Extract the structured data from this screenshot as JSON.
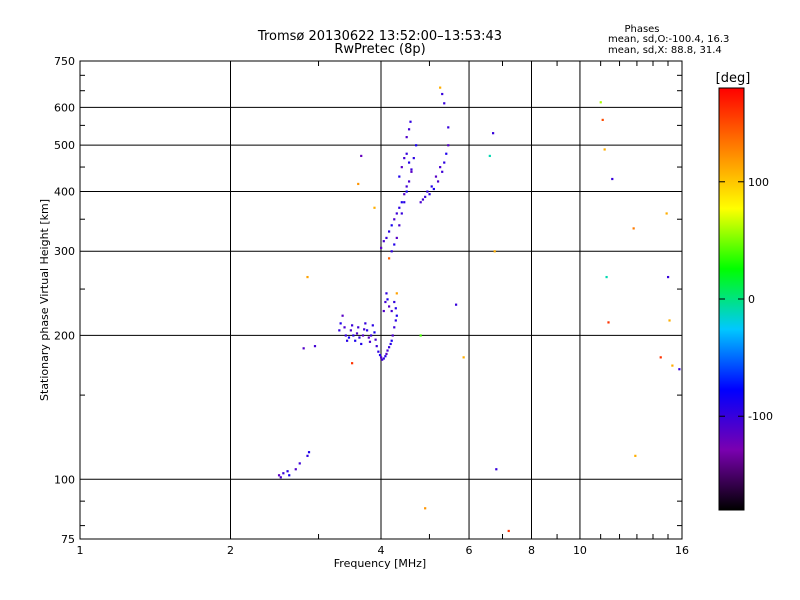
{
  "chart_data": {
    "type": "scatter",
    "title": "Tromsø 20130622 13:52:00–13:53:43",
    "subtitle": "RwPretec (8p)",
    "xlabel": "Frequency [MHz]",
    "ylabel": "Stationary phase Virtual Height [km]",
    "x_scale": "log",
    "y_scale": "log",
    "xlim": [
      1,
      16
    ],
    "ylim": [
      75,
      750
    ],
    "x_ticks": [
      1,
      2,
      4,
      6,
      8,
      10,
      16
    ],
    "x_tick_labels": [
      "1",
      "2",
      "4",
      "6",
      "8",
      "10",
      "16"
    ],
    "y_ticks": [
      75,
      100,
      200,
      300,
      400,
      500,
      600,
      750
    ],
    "y_tick_labels": [
      "75",
      "100",
      "200",
      "300",
      "400",
      "500",
      "600",
      "750"
    ],
    "grid": true,
    "legend": {
      "position": "top-right",
      "title": "Phases",
      "lines": [
        "mean, sd,O:-100.4, 16.3",
        "mean, sd,X:  88.8, 31.4"
      ]
    },
    "colorbar": {
      "label": "[deg]",
      "range": [
        -180,
        180
      ],
      "ticks": [
        100,
        0,
        -100
      ],
      "tick_labels": [
        "100",
        "0",
        "-100"
      ],
      "colormap": [
        "#000000",
        "#7a00b0",
        "#0000ff",
        "#00c8ff",
        "#00ff00",
        "#ffff00",
        "#ff8000",
        "#ff0000"
      ]
    },
    "series": [
      {
        "kind": "o-trace-lower",
        "points": [
          [
            2.5,
            102
          ],
          [
            2.52,
            101
          ],
          [
            2.55,
            103
          ],
          [
            2.6,
            104
          ],
          [
            2.62,
            102
          ],
          [
            2.7,
            105
          ],
          [
            2.75,
            108
          ],
          [
            2.85,
            112
          ],
          [
            2.87,
            114
          ],
          [
            2.8,
            188
          ],
          [
            2.95,
            190
          ],
          [
            3.3,
            205
          ],
          [
            3.32,
            212
          ],
          [
            3.35,
            220
          ],
          [
            3.38,
            208
          ],
          [
            3.4,
            200
          ],
          [
            3.42,
            195
          ],
          [
            3.45,
            198
          ],
          [
            3.48,
            205
          ],
          [
            3.5,
            210
          ],
          [
            3.52,
            200
          ],
          [
            3.55,
            195
          ],
          [
            3.58,
            202
          ],
          [
            3.6,
            208
          ],
          [
            3.62,
            198
          ],
          [
            3.65,
            192
          ],
          [
            3.68,
            200
          ],
          [
            3.7,
            206
          ],
          [
            3.72,
            212
          ],
          [
            3.75,
            205
          ],
          [
            3.78,
            198
          ],
          [
            3.8,
            194
          ],
          [
            3.82,
            200
          ],
          [
            3.85,
            210
          ],
          [
            3.88,
            203
          ],
          [
            3.9,
            196
          ],
          [
            3.92,
            190
          ],
          [
            3.95,
            185
          ],
          [
            3.98,
            182
          ],
          [
            4.0,
            180
          ],
          [
            4.02,
            178
          ],
          [
            4.05,
            179
          ],
          [
            4.08,
            181
          ],
          [
            4.1,
            183
          ],
          [
            4.12,
            186
          ],
          [
            4.15,
            189
          ],
          [
            4.18,
            192
          ],
          [
            4.2,
            195
          ],
          [
            4.22,
            200
          ],
          [
            4.25,
            208
          ],
          [
            4.28,
            215
          ],
          [
            4.3,
            220
          ],
          [
            4.05,
            225
          ],
          [
            4.08,
            235
          ],
          [
            4.1,
            245
          ],
          [
            4.12,
            238
          ],
          [
            4.15,
            230
          ],
          [
            4.2,
            225
          ],
          [
            4.25,
            235
          ],
          [
            4.28,
            228
          ]
        ]
      },
      {
        "kind": "o-trace-upper",
        "points": [
          [
            4.0,
            305
          ],
          [
            4.05,
            315
          ],
          [
            4.1,
            320
          ],
          [
            4.15,
            330
          ],
          [
            4.2,
            340
          ],
          [
            4.25,
            350
          ],
          [
            4.3,
            360
          ],
          [
            4.35,
            370
          ],
          [
            4.4,
            380
          ],
          [
            4.45,
            395
          ],
          [
            4.5,
            410
          ],
          [
            4.2,
            300
          ],
          [
            4.25,
            310
          ],
          [
            4.3,
            320
          ],
          [
            4.35,
            340
          ],
          [
            4.4,
            360
          ],
          [
            4.45,
            380
          ],
          [
            4.5,
            400
          ],
          [
            4.55,
            420
          ],
          [
            4.6,
            445
          ],
          [
            4.65,
            470
          ],
          [
            4.7,
            500
          ],
          [
            4.5,
            520
          ],
          [
            4.55,
            540
          ],
          [
            4.58,
            560
          ],
          [
            4.35,
            430
          ],
          [
            4.4,
            450
          ],
          [
            4.45,
            470
          ],
          [
            4.5,
            480
          ],
          [
            4.55,
            460
          ],
          [
            4.6,
            440
          ],
          [
            4.8,
            380
          ],
          [
            4.9,
            390
          ],
          [
            5.0,
            395
          ],
          [
            5.1,
            405
          ],
          [
            5.2,
            420
          ],
          [
            5.3,
            440
          ],
          [
            5.35,
            460
          ],
          [
            5.4,
            480
          ],
          [
            5.45,
            500
          ],
          [
            4.85,
            385
          ],
          [
            4.95,
            400
          ],
          [
            5.05,
            410
          ],
          [
            5.15,
            430
          ],
          [
            5.25,
            450
          ]
        ]
      },
      {
        "kind": "scattered",
        "points": [
          [
            2.85,
            265,
            115
          ],
          [
            3.5,
            175,
            160
          ],
          [
            3.6,
            415,
            120
          ],
          [
            3.65,
            475,
            -120
          ],
          [
            3.88,
            370,
            110
          ],
          [
            4.15,
            290,
            140
          ],
          [
            4.3,
            245,
            115
          ],
          [
            4.8,
            200,
            40
          ],
          [
            4.9,
            87,
            120
          ],
          [
            5.25,
            660,
            110
          ],
          [
            5.3,
            640,
            -100
          ],
          [
            5.35,
            612,
            -100
          ],
          [
            5.45,
            545,
            -100
          ],
          [
            5.65,
            232,
            -100
          ],
          [
            5.85,
            180,
            110
          ],
          [
            6.6,
            475,
            -10
          ],
          [
            6.7,
            530,
            -100
          ],
          [
            6.75,
            300,
            110
          ],
          [
            6.8,
            105,
            -100
          ],
          [
            7.2,
            78,
            160
          ],
          [
            11.0,
            615,
            60
          ],
          [
            11.1,
            565,
            150
          ],
          [
            11.2,
            490,
            110
          ],
          [
            11.3,
            265,
            -10
          ],
          [
            11.4,
            213,
            160
          ],
          [
            11.6,
            425,
            -100
          ],
          [
            12.8,
            335,
            130
          ],
          [
            12.9,
            112,
            110
          ],
          [
            14.5,
            180,
            160
          ],
          [
            14.9,
            360,
            110
          ],
          [
            15.0,
            265,
            -100
          ],
          [
            15.1,
            215,
            110
          ],
          [
            15.3,
            173,
            110
          ],
          [
            15.8,
            170,
            -100
          ]
        ]
      }
    ]
  }
}
